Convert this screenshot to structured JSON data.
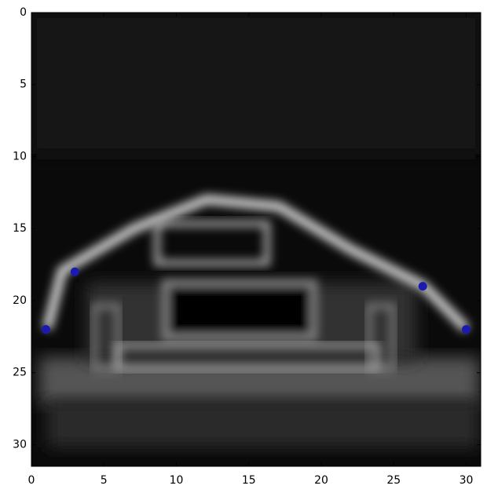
{
  "chart_data": {
    "type": "scatter",
    "x": [
      1,
      3,
      27,
      30
    ],
    "values": [
      22,
      18,
      19,
      22
    ],
    "color": "#1a1ab0",
    "xlim": [
      0,
      31
    ],
    "ylim": [
      31.5,
      0
    ],
    "xticks": [
      0,
      5,
      10,
      15,
      20,
      25,
      30
    ],
    "yticks": [
      0,
      5,
      10,
      15,
      20,
      25,
      30
    ]
  }
}
